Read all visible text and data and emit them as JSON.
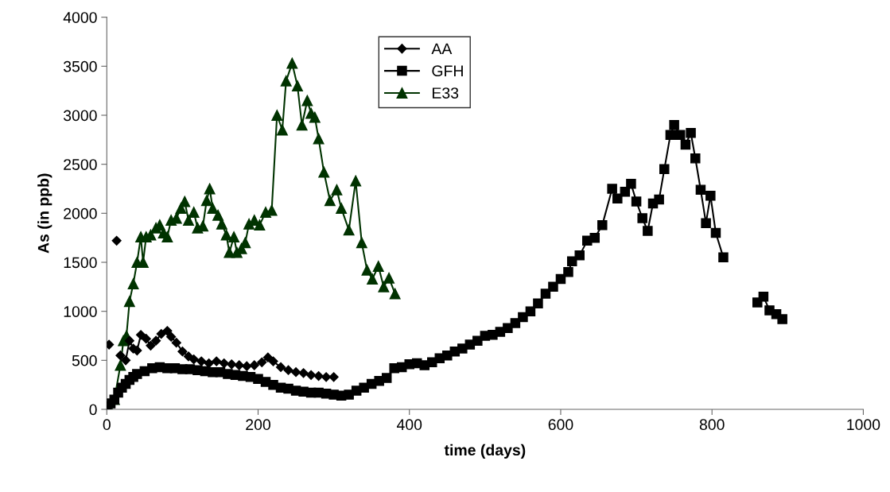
{
  "chart_data": {
    "type": "line",
    "xlabel": "time (days)",
    "ylabel": "As (in ppb)",
    "xlim": [
      0,
      1000
    ],
    "ylim": [
      0,
      4000
    ],
    "xticks": [
      0,
      200,
      400,
      600,
      800,
      1000
    ],
    "yticks": [
      0,
      500,
      1000,
      1500,
      2000,
      2500,
      3000,
      3500,
      4000
    ],
    "grid": false,
    "legend": "top center",
    "line_style": "solid",
    "series": [
      {
        "name": "AA",
        "color": "#000000",
        "marker": "diamond",
        "x": [
          3,
          8,
          13,
          15,
          18,
          25,
          30,
          35,
          40,
          45,
          52,
          58,
          65,
          72,
          80,
          85,
          92,
          100,
          108,
          115,
          125,
          135,
          145,
          155,
          165,
          175,
          185,
          195,
          205,
          213,
          220,
          230,
          240,
          250,
          260,
          270,
          280,
          290,
          300
        ],
        "values": [
          660,
          null,
          1720,
          null,
          550,
          500,
          700,
          620,
          600,
          760,
          720,
          650,
          700,
          770,
          800,
          740,
          680,
          590,
          540,
          510,
          490,
          470,
          490,
          470,
          460,
          450,
          440,
          450,
          480,
          530,
          490,
          430,
          400,
          380,
          370,
          350,
          340,
          330,
          330
        ]
      },
      {
        "name": "GFH",
        "color": "#000000",
        "marker": "square",
        "x": [
          0,
          5,
          10,
          15,
          20,
          25,
          30,
          35,
          40,
          50,
          60,
          70,
          80,
          90,
          100,
          110,
          120,
          130,
          140,
          150,
          160,
          170,
          180,
          190,
          200,
          210,
          220,
          230,
          240,
          250,
          260,
          270,
          280,
          290,
          300,
          310,
          320,
          330,
          340,
          350,
          360,
          370,
          380,
          390,
          400,
          410,
          420,
          430,
          440,
          450,
          460,
          470,
          480,
          490,
          500,
          510,
          520,
          530,
          540,
          550,
          560,
          570,
          580,
          590,
          600,
          610,
          615,
          625,
          635,
          645,
          655,
          668,
          675,
          685,
          693,
          700,
          708,
          715,
          722,
          730,
          737,
          745,
          750,
          758,
          765,
          772,
          778,
          785,
          792,
          798,
          805,
          815,
          838,
          860,
          868,
          876,
          885,
          893
        ],
        "values": [
          30,
          60,
          100,
          170,
          220,
          260,
          300,
          330,
          360,
          390,
          420,
          430,
          420,
          420,
          410,
          410,
          400,
          390,
          380,
          380,
          360,
          350,
          340,
          330,
          310,
          280,
          250,
          220,
          210,
          190,
          180,
          170,
          170,
          160,
          150,
          140,
          150,
          190,
          220,
          260,
          290,
          320,
          420,
          430,
          460,
          470,
          450,
          480,
          520,
          550,
          590,
          620,
          660,
          700,
          750,
          760,
          790,
          830,
          880,
          940,
          1000,
          1080,
          1180,
          1250,
          1330,
          1400,
          1510,
          1570,
          1720,
          1750,
          1880,
          2250,
          2150,
          2220,
          2300,
          2120,
          1950,
          1820,
          2100,
          2140,
          2450,
          2800,
          2900,
          2800,
          2700,
          2820,
          2560,
          2240,
          1900,
          2180,
          1800,
          1550,
          null,
          1090,
          1150,
          1010,
          970,
          920
        ]
      },
      {
        "name": "E33",
        "color": "#003300",
        "marker": "triangle",
        "x": [
          3,
          10,
          18,
          22,
          26,
          30,
          35,
          40,
          45,
          48,
          52,
          58,
          65,
          70,
          75,
          80,
          85,
          92,
          98,
          103,
          108,
          115,
          120,
          127,
          132,
          136,
          140,
          147,
          152,
          158,
          162,
          168,
          172,
          178,
          183,
          188,
          195,
          202,
          210,
          218,
          225,
          232,
          237,
          245,
          252,
          258,
          265,
          270,
          275,
          280,
          287,
          295,
          304,
          310,
          320,
          329,
          337,
          344,
          351,
          359,
          366,
          373,
          381
        ],
        "values": [
          20,
          100,
          450,
          700,
          750,
          1100,
          1280,
          1500,
          1760,
          1500,
          1760,
          1780,
          1850,
          1880,
          1800,
          1760,
          1930,
          1950,
          2050,
          2120,
          1930,
          2010,
          1850,
          1870,
          2130,
          2250,
          2050,
          1980,
          1890,
          1780,
          1600,
          1760,
          1600,
          1640,
          1700,
          1890,
          1930,
          1880,
          2010,
          2030,
          3000,
          2850,
          3350,
          3530,
          3300,
          2900,
          3150,
          3020,
          2980,
          2760,
          2420,
          2130,
          2240,
          2050,
          1830,
          2330,
          1700,
          1420,
          1330,
          1460,
          1250,
          1340,
          1180
        ]
      }
    ]
  }
}
